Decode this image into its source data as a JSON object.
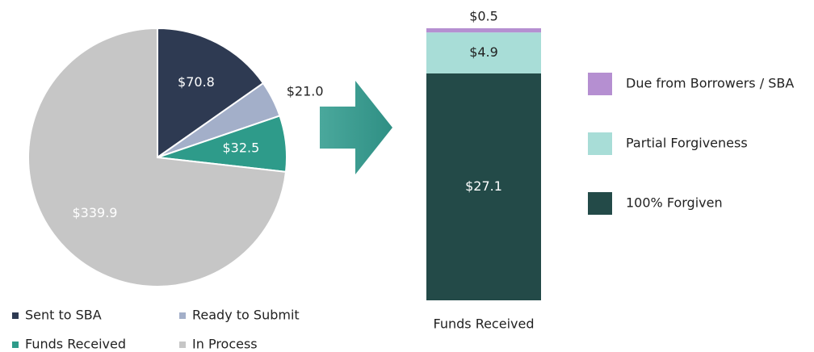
{
  "chart_data": [
    {
      "type": "pie",
      "categories": [
        "Sent to SBA",
        "Ready to Submit",
        "Funds Received",
        "In Process"
      ],
      "values": [
        70.8,
        21.0,
        32.5,
        339.9
      ],
      "value_labels": [
        "$70.8",
        "$21.0",
        "$32.5",
        "$339.9"
      ],
      "colors": [
        "#2e3a52",
        "#a3afc9",
        "#2e9b8a",
        "#c6c6c6"
      ]
    },
    {
      "type": "stacked_bar",
      "categories": [
        "Funds Received"
      ],
      "series": [
        {
          "name": "100% Forgiven",
          "color": "#234a48",
          "values": [
            27.1
          ],
          "value_labels": [
            "$27.1"
          ]
        },
        {
          "name": "Partial Forgiveness",
          "color": "#a8ddd7",
          "values": [
            4.9
          ],
          "value_labels": [
            "$4.9"
          ]
        },
        {
          "name": "Due from Borrowers / SBA",
          "color": "#b58fd1",
          "values": [
            0.5
          ],
          "value_labels": [
            "$0.5"
          ]
        }
      ]
    }
  ]
}
